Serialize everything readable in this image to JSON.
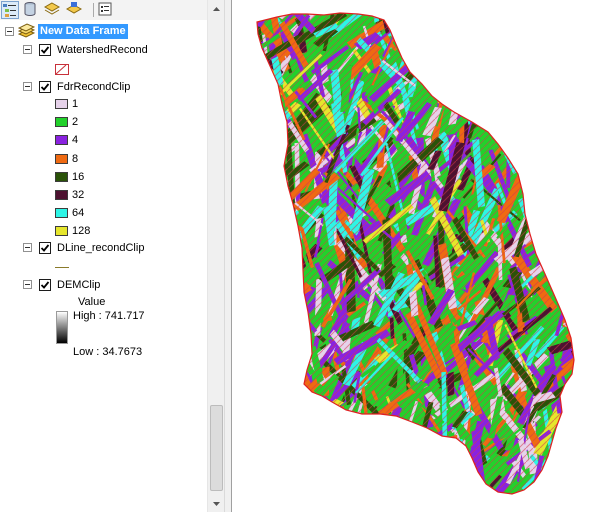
{
  "toc": {
    "data_frame": {
      "label": "New Data Frame"
    },
    "layers": [
      {
        "name": "WatershedRecond",
        "checked": true
      },
      {
        "name": "FdrRecondClip",
        "checked": true,
        "classes": [
          {
            "label": "1",
            "color": "#e6d2ea"
          },
          {
            "label": "2",
            "color": "#22d12b"
          },
          {
            "label": "4",
            "color": "#8a22e0"
          },
          {
            "label": "8",
            "color": "#ef6a12"
          },
          {
            "label": "16",
            "color": "#2a5208"
          },
          {
            "label": "32",
            "color": "#4d1230"
          },
          {
            "label": "64",
            "color": "#2ef5e6"
          },
          {
            "label": "128",
            "color": "#e6e62c"
          }
        ]
      },
      {
        "name": "DLine_recondClip",
        "checked": true,
        "line_color": "#8a7a2a"
      },
      {
        "name": "DEMClip",
        "checked": true,
        "legend_title": "Value",
        "high_label": "High : 741.717",
        "low_label": "Low : 34.7673"
      }
    ]
  },
  "map": {
    "outline_color": "#e02020",
    "hatch_color": "#d23a4a"
  }
}
